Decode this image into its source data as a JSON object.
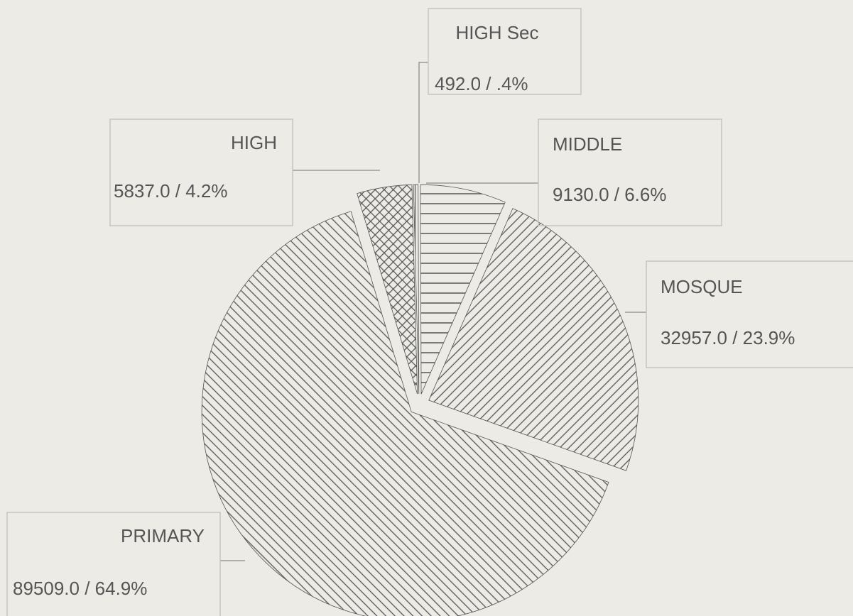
{
  "chart_data": {
    "type": "pie",
    "categories": [
      "HIGH Sec",
      "MIDDLE",
      "MOSQUE",
      "PRIMARY",
      "HIGH"
    ],
    "values": [
      492,
      9130,
      32957,
      89509,
      5837
    ],
    "value_labels": [
      "492.0 / .4%",
      "9130.0 / 6.6%",
      "32957.0 / 23.9%",
      "89509.0 / 64.9%",
      "5837.0 / 4.2%"
    ],
    "hatches": [
      "vertical",
      "horizontal",
      "diagonal",
      "back-diagonal",
      "cross"
    ],
    "color": "#555555"
  }
}
